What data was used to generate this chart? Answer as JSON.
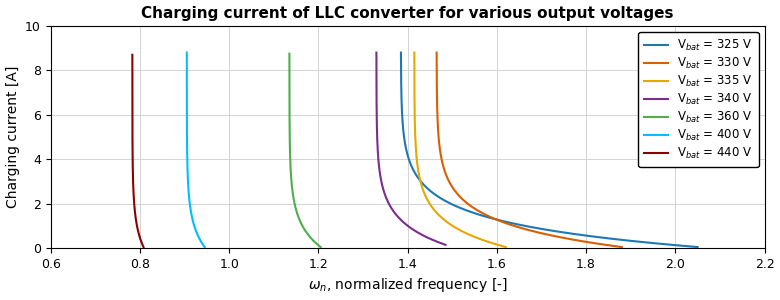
{
  "title": "Charging current of LLC converter for various output voltages",
  "xlabel": "$\\omega_n$, normalized frequency [-]",
  "ylabel": "Charging current [A]",
  "xlim": [
    0.6,
    2.2
  ],
  "ylim": [
    0,
    10
  ],
  "xticks": [
    0.6,
    0.8,
    1.0,
    1.2,
    1.4,
    1.6,
    1.8,
    2.0,
    2.2
  ],
  "yticks": [
    0,
    2,
    4,
    6,
    8,
    10
  ],
  "curves": [
    {
      "label": "V$_{bat}$ = 325 V",
      "color": "#1f77b4",
      "omega_start": 1.385,
      "omega_end": 2.05,
      "I_max": 8.8,
      "I_min": 0.05,
      "shape": 8.0
    },
    {
      "label": "V$_{bat}$ = 330 V",
      "color": "#d95f02",
      "omega_start": 1.465,
      "omega_end": 1.88,
      "I_max": 8.8,
      "I_min": 0.05,
      "shape": 8.0
    },
    {
      "label": "V$_{bat}$ = 335 V",
      "color": "#e6a800",
      "omega_start": 1.415,
      "omega_end": 1.62,
      "I_max": 8.8,
      "I_min": 0.05,
      "shape": 8.0
    },
    {
      "label": "V$_{bat}$ = 340 V",
      "color": "#7b2d8b",
      "omega_start": 1.33,
      "omega_end": 1.485,
      "I_max": 8.8,
      "I_min": 0.15,
      "shape": 8.0
    },
    {
      "label": "V$_{bat}$ = 360 V",
      "color": "#4daf4a",
      "omega_start": 1.135,
      "omega_end": 1.205,
      "I_max": 8.75,
      "I_min": 0.05,
      "shape": 8.0
    },
    {
      "label": "V$_{bat}$ = 400 V",
      "color": "#00bfff",
      "omega_start": 0.905,
      "omega_end": 0.945,
      "I_max": 8.8,
      "I_min": 0.05,
      "shape": 8.0
    },
    {
      "label": "V$_{bat}$ = 440 V",
      "color": "#8b0000",
      "omega_start": 0.783,
      "omega_end": 0.808,
      "I_max": 8.7,
      "I_min": 0.05,
      "shape": 8.0
    }
  ],
  "figsize": [
    7.8,
    3.0
  ],
  "dpi": 100
}
